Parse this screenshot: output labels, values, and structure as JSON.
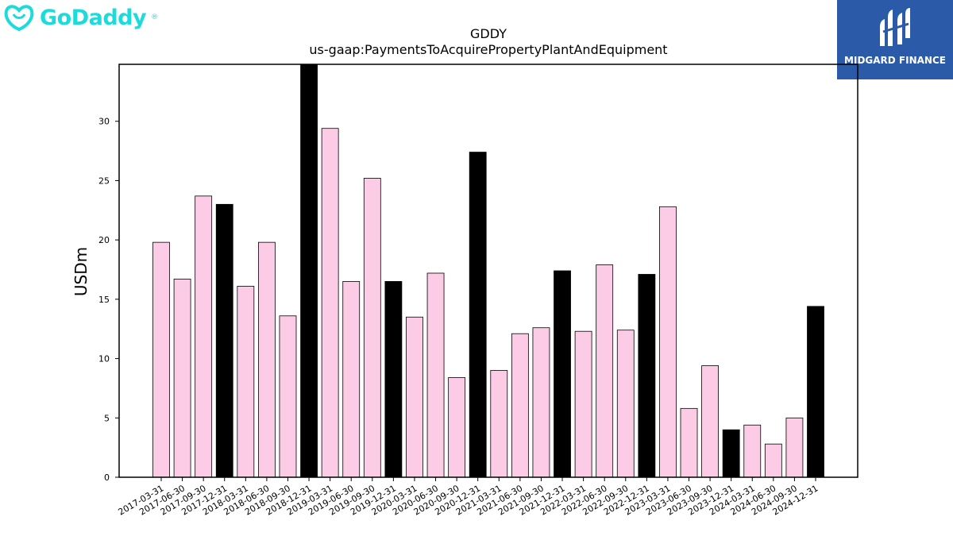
{
  "logos": {
    "left_text": "GoDaddy",
    "left_mark": "®",
    "left_color": "#1bdbdb",
    "right_text": "MIDGARD FINANCE",
    "right_bg": "#2b5aa8"
  },
  "chart_data": {
    "type": "bar",
    "title": "GDDY",
    "subtitle": "us-gaap:PaymentsToAcquirePropertyPlantAndEquipment",
    "xlabel": "",
    "ylabel": "USDm",
    "ylim": [
      0,
      34.8
    ],
    "yticks": [
      0,
      5,
      10,
      15,
      20,
      25,
      30
    ],
    "grid": false,
    "colors": {
      "quarter": "#fccce6",
      "year_end": "#000000",
      "edge": "#000000"
    },
    "categories": [
      "2017-03-31",
      "2017-06-30",
      "2017-09-30",
      "2017-12-31",
      "2018-03-31",
      "2018-06-30",
      "2018-09-30",
      "2018-12-31",
      "2019-03-31",
      "2019-06-30",
      "2019-09-30",
      "2019-12-31",
      "2020-03-31",
      "2020-06-30",
      "2020-09-30",
      "2020-12-31",
      "2021-03-31",
      "2021-06-30",
      "2021-09-30",
      "2021-12-31",
      "2022-03-31",
      "2022-06-30",
      "2022-09-30",
      "2022-12-31",
      "2023-03-31",
      "2023-06-30",
      "2023-09-30",
      "2023-12-31",
      "2024-03-31",
      "2024-06-30",
      "2024-09-30",
      "2024-12-31"
    ],
    "values": [
      19.8,
      16.7,
      23.7,
      23.0,
      16.1,
      19.8,
      13.6,
      34.8,
      29.4,
      16.5,
      25.2,
      16.5,
      13.5,
      17.2,
      8.4,
      27.4,
      9.0,
      12.1,
      12.6,
      17.4,
      12.3,
      17.9,
      12.4,
      17.1,
      22.8,
      5.8,
      9.4,
      4.0,
      4.4,
      2.8,
      5.0,
      14.4
    ]
  }
}
